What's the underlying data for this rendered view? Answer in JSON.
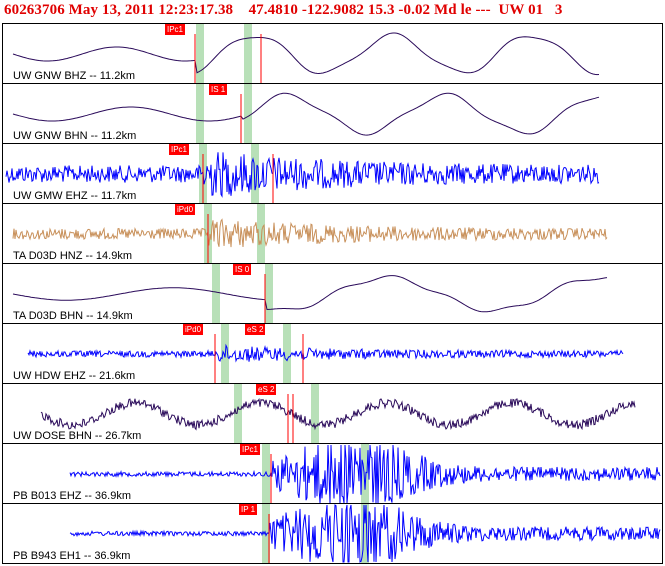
{
  "header": {
    "event_id": "60263706",
    "date": "May 13, 2011",
    "time": "12:23:17.38",
    "latitude": "47.4810",
    "longitude": "-122.9082",
    "depth": "15.3",
    "magnitude": "-0.02",
    "mag_type": "Md",
    "flags": "le ---",
    "network": "UW",
    "version": "01",
    "extra": "3"
  },
  "colors": {
    "header": "#e00000",
    "pick": "#ff0000",
    "window": "#b8e0b8",
    "dark_trace": "#2a0a5a",
    "blue_trace": "#0000ff",
    "tan_trace": "#c8905a"
  },
  "traces": [
    {
      "label": "UW GNW BHZ -- 11.2km",
      "pick": "IPc1",
      "color": "dark_trace",
      "wave": "long",
      "amp": 0.9
    },
    {
      "label": "UW GNW BHN -- 11.2km",
      "pick": "IS 1",
      "color": "dark_trace",
      "wave": "long",
      "amp": 0.9
    },
    {
      "label": "UW GMW EHZ -- 11.7km",
      "pick": "IPc1",
      "color": "blue_trace",
      "wave": "noise",
      "amp": 0.55
    },
    {
      "label": "TA D03D HNZ -- 14.9km",
      "pick": "iPd0",
      "color": "tan_trace",
      "wave": "noise",
      "amp": 0.35
    },
    {
      "label": "TA D03D BHN -- 14.9km",
      "pick": "IS 0",
      "color": "dark_trace",
      "wave": "long",
      "amp": 0.8
    },
    {
      "label": "UW HDW EHZ -- 21.6km",
      "pick": "iPd0",
      "pick2": "eS 2",
      "color": "blue_trace",
      "wave": "noise",
      "amp": 0.2
    },
    {
      "label": "UW DOSE BHN -- 26.7km",
      "pick": "eS 2",
      "color": "dark_trace",
      "wave": "mixed",
      "amp": 0.7
    },
    {
      "label": "PB B013 EHZ -- 36.9km",
      "pick": "IPc1",
      "color": "blue_trace",
      "wave": "burst",
      "amp": 0.9
    },
    {
      "label": "PB B943 EH1 -- 36.9km",
      "pick": "IP 1",
      "color": "blue_trace",
      "wave": "burst",
      "amp": 0.9
    }
  ]
}
